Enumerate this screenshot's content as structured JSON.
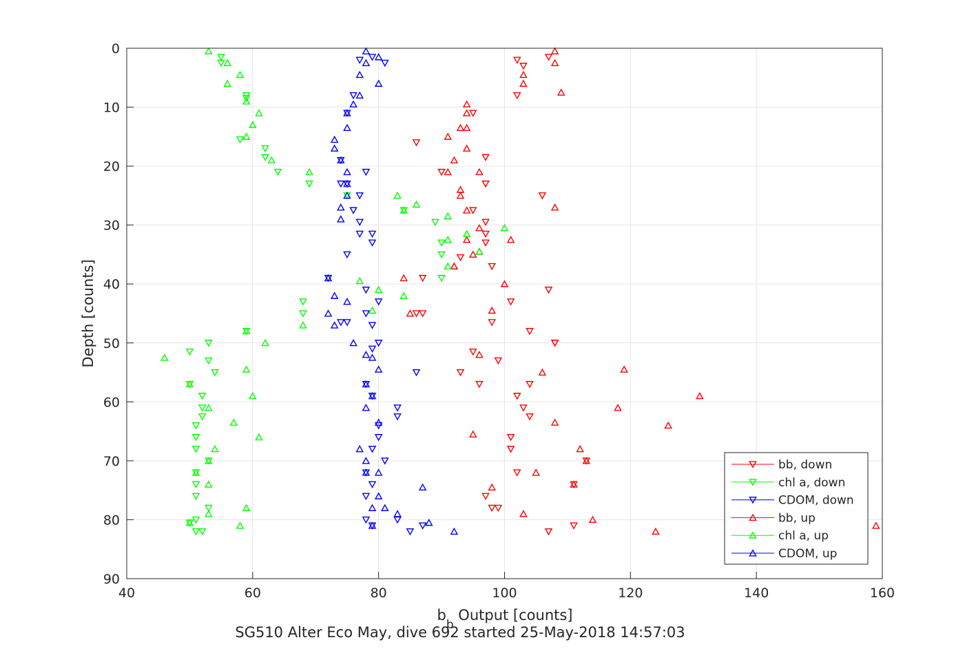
{
  "chart_data": {
    "type": "scatter",
    "title": "SG510 Alter Eco May, dive 692 started 25-May-2018 14:57:03",
    "xlabel_main": "b",
    "xlabel_sub": "b",
    "xlabel_rest": " Output [counts]",
    "ylabel": "Depth [counts]",
    "xlim": [
      40,
      160
    ],
    "ylim": [
      0,
      90
    ],
    "y_reversed": true,
    "xticks": [
      40,
      60,
      80,
      100,
      120,
      140,
      160
    ],
    "yticks": [
      0,
      10,
      20,
      30,
      40,
      50,
      60,
      70,
      80,
      90
    ],
    "grid": true,
    "legend_position": "bottom-right",
    "series": [
      {
        "name": "bb, down",
        "color": "#ff0000",
        "marker": "triangle-down",
        "x": [
          107,
          102,
          103,
          102,
          95,
          86,
          97,
          90,
          97,
          106,
          95,
          97,
          97,
          97,
          87,
          93,
          98,
          87,
          107,
          101,
          86,
          98,
          104,
          108,
          95,
          99,
          93,
          96,
          104,
          102,
          103,
          104,
          108,
          101,
          101,
          113,
          102,
          111,
          97,
          98,
          99,
          111,
          107
        ],
        "y": [
          1.5,
          2,
          3,
          8,
          11,
          16,
          18.5,
          21,
          23,
          25,
          27.5,
          29.5,
          31.5,
          33,
          39,
          35.5,
          37,
          45,
          41,
          43,
          45,
          46.5,
          48,
          50,
          51.5,
          53,
          55,
          57,
          57,
          59,
          61,
          62.5,
          50,
          66,
          68,
          70,
          72,
          74,
          76,
          78,
          78,
          81,
          82
        ]
      },
      {
        "name": "chl a, down",
        "color": "#00ff00",
        "marker": "triangle-down",
        "x": [
          55,
          55,
          59,
          59,
          58,
          62,
          62,
          64,
          69,
          75,
          84,
          89,
          90,
          90,
          90,
          68,
          68,
          59,
          53,
          50,
          53,
          54,
          50,
          52,
          52,
          52,
          51,
          51,
          53,
          51,
          51,
          51,
          51,
          50,
          53,
          51,
          51,
          52
        ],
        "y": [
          1.5,
          2.5,
          8,
          8.5,
          15.5,
          17,
          18.5,
          21,
          23,
          25,
          27.5,
          29.5,
          33,
          35,
          39,
          43,
          45,
          48,
          50,
          51.5,
          53,
          55,
          57,
          59,
          61,
          62.5,
          64,
          66,
          70,
          68,
          72,
          74,
          76,
          80.5,
          78,
          80,
          82,
          82
        ]
      },
      {
        "name": "CDOM, down",
        "color": "#0000ff",
        "marker": "triangle-down",
        "x": [
          79,
          77,
          81,
          76,
          75,
          74,
          78,
          74,
          75,
          77,
          76,
          77,
          77,
          79,
          79,
          75,
          72,
          78,
          80,
          78,
          75,
          74,
          79,
          80,
          79,
          86,
          78,
          79,
          83,
          83,
          80,
          80,
          79,
          81,
          78,
          79,
          78,
          83,
          87,
          85,
          78,
          79
        ],
        "y": [
          1.5,
          2,
          2.5,
          8,
          11,
          19,
          21,
          23,
          23,
          25,
          27.5,
          29.5,
          31.5,
          31.5,
          33,
          35,
          39,
          41,
          43,
          45,
          46.5,
          46.5,
          47,
          50,
          51,
          55,
          57,
          59,
          61,
          62.5,
          64,
          66,
          68,
          70,
          72,
          74,
          76,
          80,
          81,
          82,
          80,
          81
        ]
      },
      {
        "name": "bb, up",
        "color": "#ff0000",
        "marker": "triangle-up",
        "x": [
          108,
          108,
          103,
          103,
          109,
          94,
          94,
          94,
          93,
          91,
          94,
          92,
          91,
          96,
          93,
          93,
          108,
          94,
          96,
          101,
          94,
          96,
          95,
          92,
          100,
          92,
          84,
          85,
          98,
          96,
          119,
          131,
          118,
          126,
          108,
          95,
          106,
          112,
          113,
          105,
          111,
          98,
          103,
          114,
          124,
          159
        ],
        "y": [
          0.5,
          2.5,
          4.5,
          6,
          7.5,
          9.5,
          11,
          13.5,
          13.5,
          15,
          17,
          19,
          21,
          21,
          24,
          25,
          27,
          27.5,
          30.5,
          32.5,
          32.5,
          34.5,
          35,
          37,
          40,
          37,
          39,
          45,
          44.5,
          52,
          54.5,
          59,
          61,
          64,
          63.5,
          65.5,
          55,
          68,
          70,
          72,
          74,
          74.5,
          79,
          80,
          82,
          81
        ]
      },
      {
        "name": "chl a, up",
        "color": "#00ff00",
        "marker": "triangle-up",
        "x": [
          53,
          56,
          58,
          56,
          59,
          61,
          60,
          59,
          63,
          69,
          83,
          86,
          84,
          91,
          100,
          91,
          94,
          96,
          91,
          77,
          80,
          84,
          79,
          68,
          59,
          62,
          46,
          59,
          50,
          60,
          53,
          57,
          61,
          54,
          53,
          51,
          53,
          53,
          59,
          50,
          58
        ],
        "y": [
          0.5,
          2.5,
          4.5,
          6,
          9,
          11,
          13,
          15,
          19,
          21,
          25,
          26.5,
          27.5,
          28.5,
          30.5,
          32.5,
          31.5,
          34.5,
          37,
          39.5,
          41,
          42,
          44.5,
          47,
          48,
          50,
          52.5,
          54.5,
          57,
          59,
          61,
          63.5,
          66,
          68,
          70,
          72,
          74,
          79,
          78,
          80.5,
          81
        ]
      },
      {
        "name": "CDOM, up",
        "color": "#0000ff",
        "marker": "triangle-up",
        "x": [
          78,
          80,
          78,
          77,
          80,
          77,
          76,
          75,
          75,
          73,
          73,
          74,
          75,
          75,
          75,
          74,
          74,
          72,
          73,
          75,
          72,
          73,
          76,
          78,
          79,
          80,
          78,
          79,
          78,
          80,
          77,
          78,
          80,
          80,
          79,
          78,
          81,
          87,
          79,
          83,
          88,
          92
        ],
        "y": [
          0.5,
          1.5,
          2.5,
          4.5,
          6,
          8,
          9.5,
          11,
          13.5,
          15.5,
          17,
          19,
          21,
          23,
          25,
          27,
          29,
          39,
          42,
          43,
          45,
          47,
          50,
          52,
          52.5,
          54.5,
          57,
          59,
          61,
          63.5,
          68,
          70,
          72,
          76,
          78,
          72,
          78,
          74.5,
          81,
          79,
          80.5,
          82
        ]
      }
    ]
  }
}
